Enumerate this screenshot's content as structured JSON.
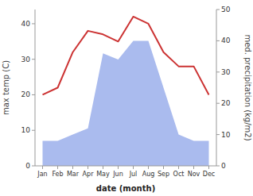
{
  "chart_data": {
    "type": "line",
    "xlabel": "date (month)",
    "ylabel": "max temp (C)",
    "y2label": "med. precipitation (kg/m2)",
    "categories": [
      "Jan",
      "Feb",
      "Mar",
      "Apr",
      "May",
      "Jun",
      "Jul",
      "Aug",
      "Sep",
      "Oct",
      "Nov",
      "Dec"
    ],
    "series": [
      {
        "type": "area",
        "axis": "y2",
        "color": "#aabbee",
        "values": [
          8,
          8,
          10,
          12,
          36,
          34,
          40,
          40,
          25,
          10,
          8,
          8
        ]
      },
      {
        "type": "line",
        "color": "#cc3333",
        "values": [
          20,
          22,
          32,
          38,
          37,
          35,
          42,
          40,
          32,
          28,
          28,
          20
        ]
      }
    ],
    "ylim": [
      0,
      44
    ],
    "yticks": [
      0,
      10,
      20,
      30,
      40
    ],
    "y2lim": [
      0,
      50
    ],
    "y2ticks": [
      0,
      10,
      20,
      30,
      40,
      50
    ],
    "grid": false
  }
}
